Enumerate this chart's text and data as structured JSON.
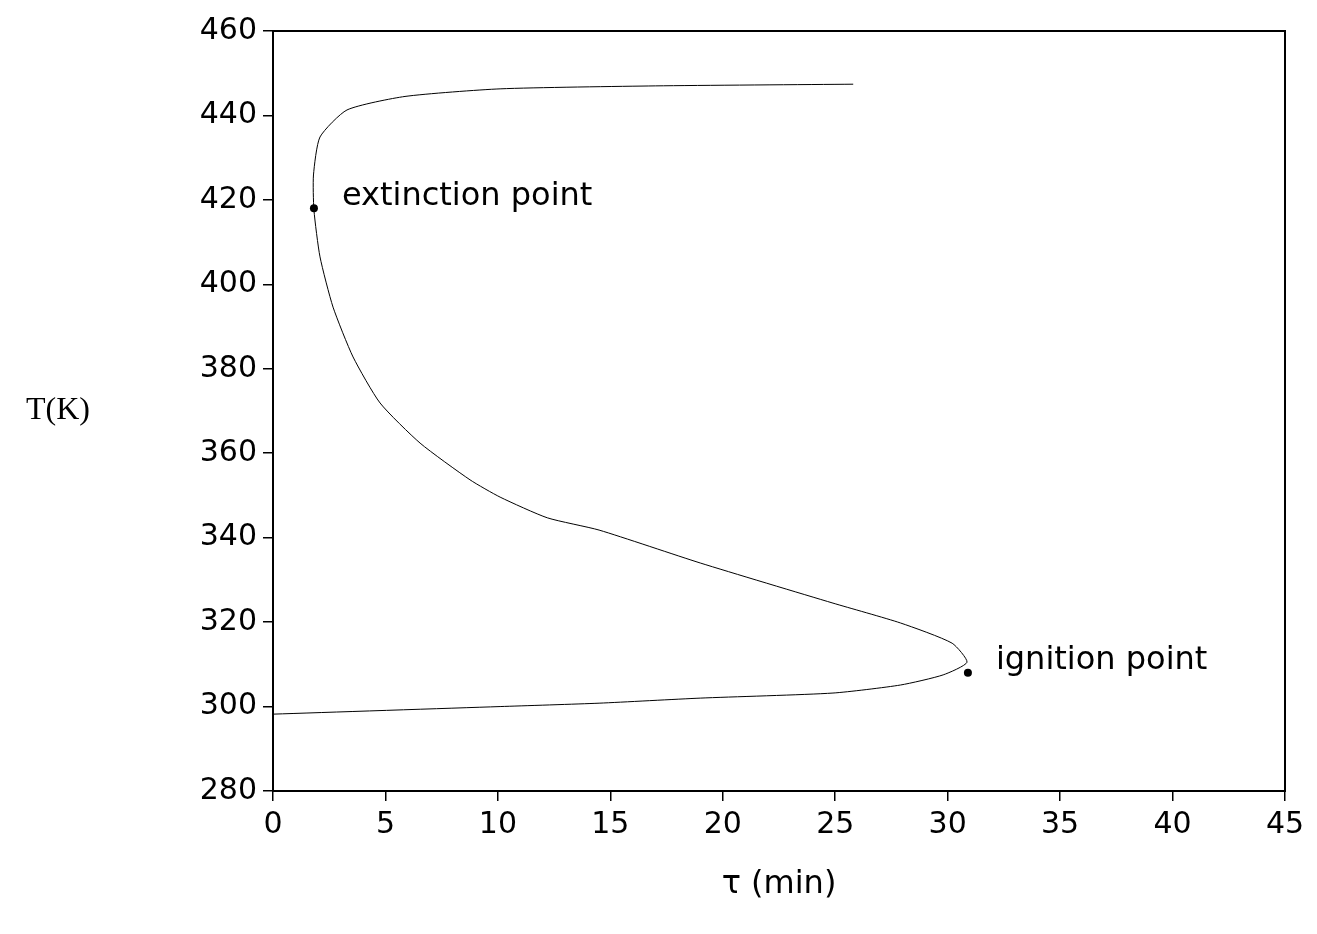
{
  "chart_data": {
    "type": "line",
    "xlabel": "τ (min)",
    "ylabel": "T(K)",
    "xlim": [
      0,
      45
    ],
    "xticks": [
      0,
      5,
      10,
      15,
      20,
      25,
      30,
      35,
      40,
      45
    ],
    "ylim": [
      280,
      460
    ],
    "yticks": [
      280,
      300,
      320,
      340,
      360,
      380,
      400,
      420,
      440,
      460
    ],
    "grid": false,
    "legend": false,
    "series": [
      {
        "color": "#000000",
        "marker": "none",
        "x": [
          0,
          10.1,
          14.5,
          19.0,
          24.9,
          27.9,
          29.8,
          30.86,
          30.2,
          27.9,
          24.9,
          19.0,
          14.5,
          12.2,
          10.1,
          8.76,
          6.54,
          4.76,
          3.56,
          2.67,
          2.09,
          1.82,
          1.8,
          2.09,
          3.29,
          5.87,
          10.1,
          17.0,
          25.8
        ],
        "values": [
          298.2,
          300.0,
          300.8,
          302.0,
          303.2,
          305.1,
          307.5,
          310.5,
          315.0,
          319.8,
          324.5,
          334.0,
          341.8,
          344.7,
          349.6,
          353.7,
          362.4,
          371.9,
          382.8,
          394.6,
          406.5,
          417.6,
          425.9,
          434.9,
          441.3,
          444.5,
          446.3,
          447.0,
          447.4
        ]
      },
      {
        "type": "scatter",
        "color": "#000000",
        "marker": "circle",
        "x": [
          1.82,
          30.9
        ],
        "values": [
          418,
          308
        ]
      }
    ],
    "annotations": [
      {
        "text": "extinction point",
        "x": 1.82,
        "y": 418
      },
      {
        "text": "ignition point",
        "x": 30.9,
        "y": 308
      }
    ]
  }
}
